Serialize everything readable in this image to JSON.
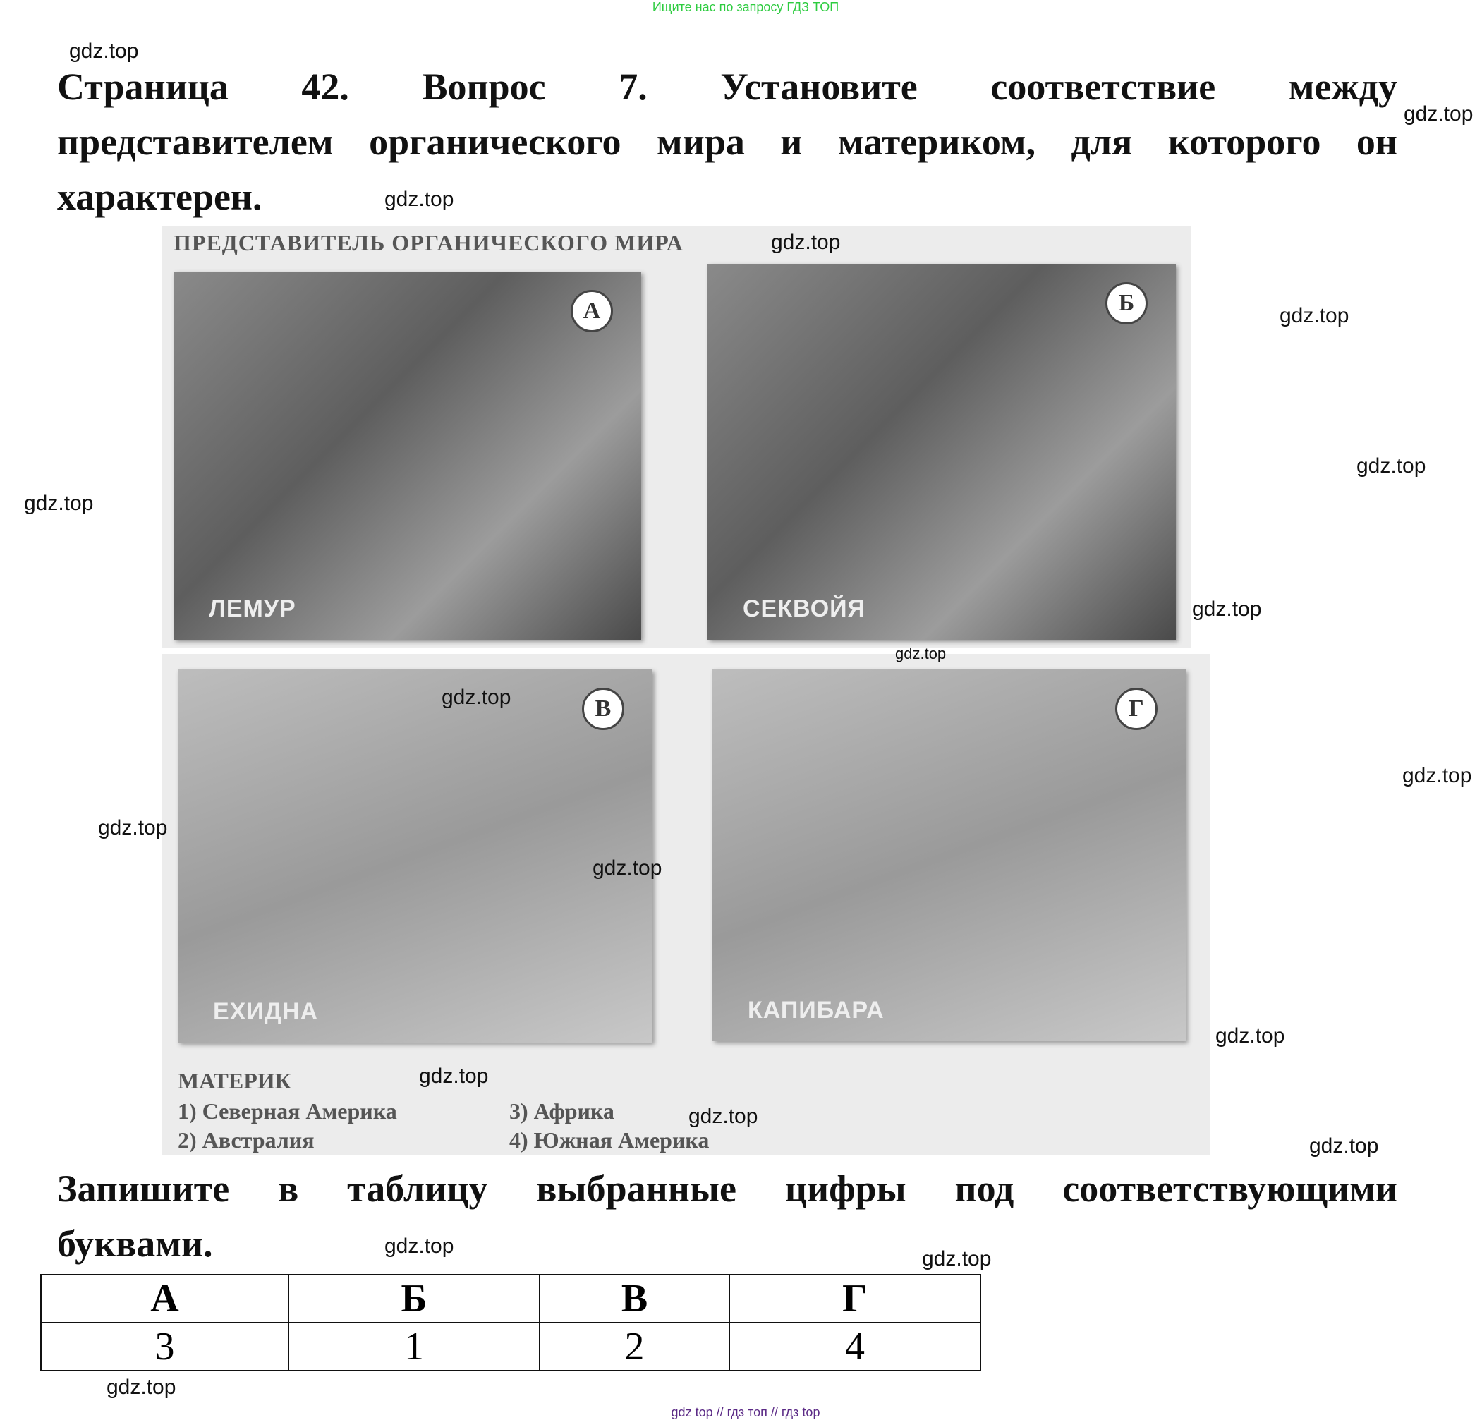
{
  "top_note": "Ищите нас по запросу ГДЗ ТОП",
  "question": {
    "line1": "Страница 42. Вопрос 7. Установите соответствие между",
    "line2": "представителем органического мира и материком, для которого он",
    "line3": "характерен."
  },
  "figure": {
    "heading": "ПРЕДСТАВИТЕЛЬ ОРГАНИЧЕСКОГО МИРА",
    "photos": [
      {
        "letter": "А",
        "label": "ЛЕМУР"
      },
      {
        "letter": "Б",
        "label": "СЕКВОЙЯ"
      },
      {
        "letter": "В",
        "label": "ЕХИДНА"
      },
      {
        "letter": "Г",
        "label": "КАПИБАРА"
      }
    ],
    "continent_heading": "МАТЕРИК",
    "continents": [
      "1) Северная Америка",
      "2) Австралия",
      "3) Африка",
      "4) Южная Америка"
    ]
  },
  "instruction": {
    "line1": "Запишите в таблицу выбранные цифры под соответствующими",
    "line2": "буквами."
  },
  "answer_table": {
    "headers": [
      "А",
      "Б",
      "В",
      "Г"
    ],
    "values": [
      "3",
      "1",
      "2",
      "4"
    ]
  },
  "watermark": "gdz.top",
  "footer": "gdz top  //  гдз топ  //  гдз top"
}
